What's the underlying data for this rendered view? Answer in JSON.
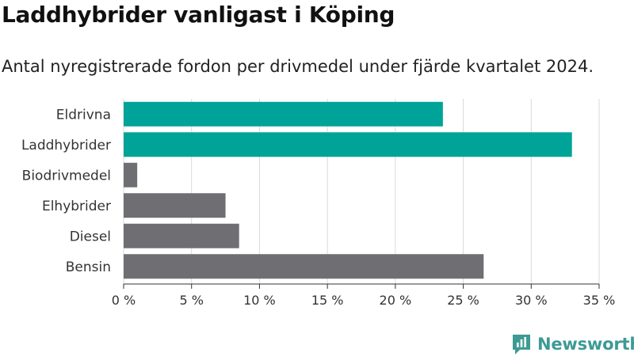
{
  "header": {
    "title": "Laddhybrider vanligast i Köping",
    "subtitle": "Antal nyregistrerade fordon per drivmedel under fjärde kvartalet 2024."
  },
  "brand": {
    "name": "Newsworthy",
    "color": "#3d9a94",
    "icon": "newsworthy-logo-icon"
  },
  "chart_data": {
    "type": "bar",
    "orientation": "horizontal",
    "categories": [
      "Eldrivna",
      "Laddhybrider",
      "Biodrivmedel",
      "Elhybrider",
      "Diesel",
      "Bensin"
    ],
    "values": [
      23.5,
      33.0,
      1.0,
      7.5,
      8.5,
      26.5
    ],
    "colors": [
      "#00a398",
      "#00a398",
      "#6e6e73",
      "#6e6e73",
      "#6e6e73",
      "#6e6e73"
    ],
    "xlim": [
      0,
      35
    ],
    "xticks": [
      0,
      5,
      10,
      15,
      20,
      25,
      30,
      35
    ],
    "xtick_labels": [
      "0 %",
      "5 %",
      "10 %",
      "15 %",
      "20 %",
      "25 %",
      "30 %",
      "35 %"
    ],
    "grid": true,
    "legend": "none"
  }
}
